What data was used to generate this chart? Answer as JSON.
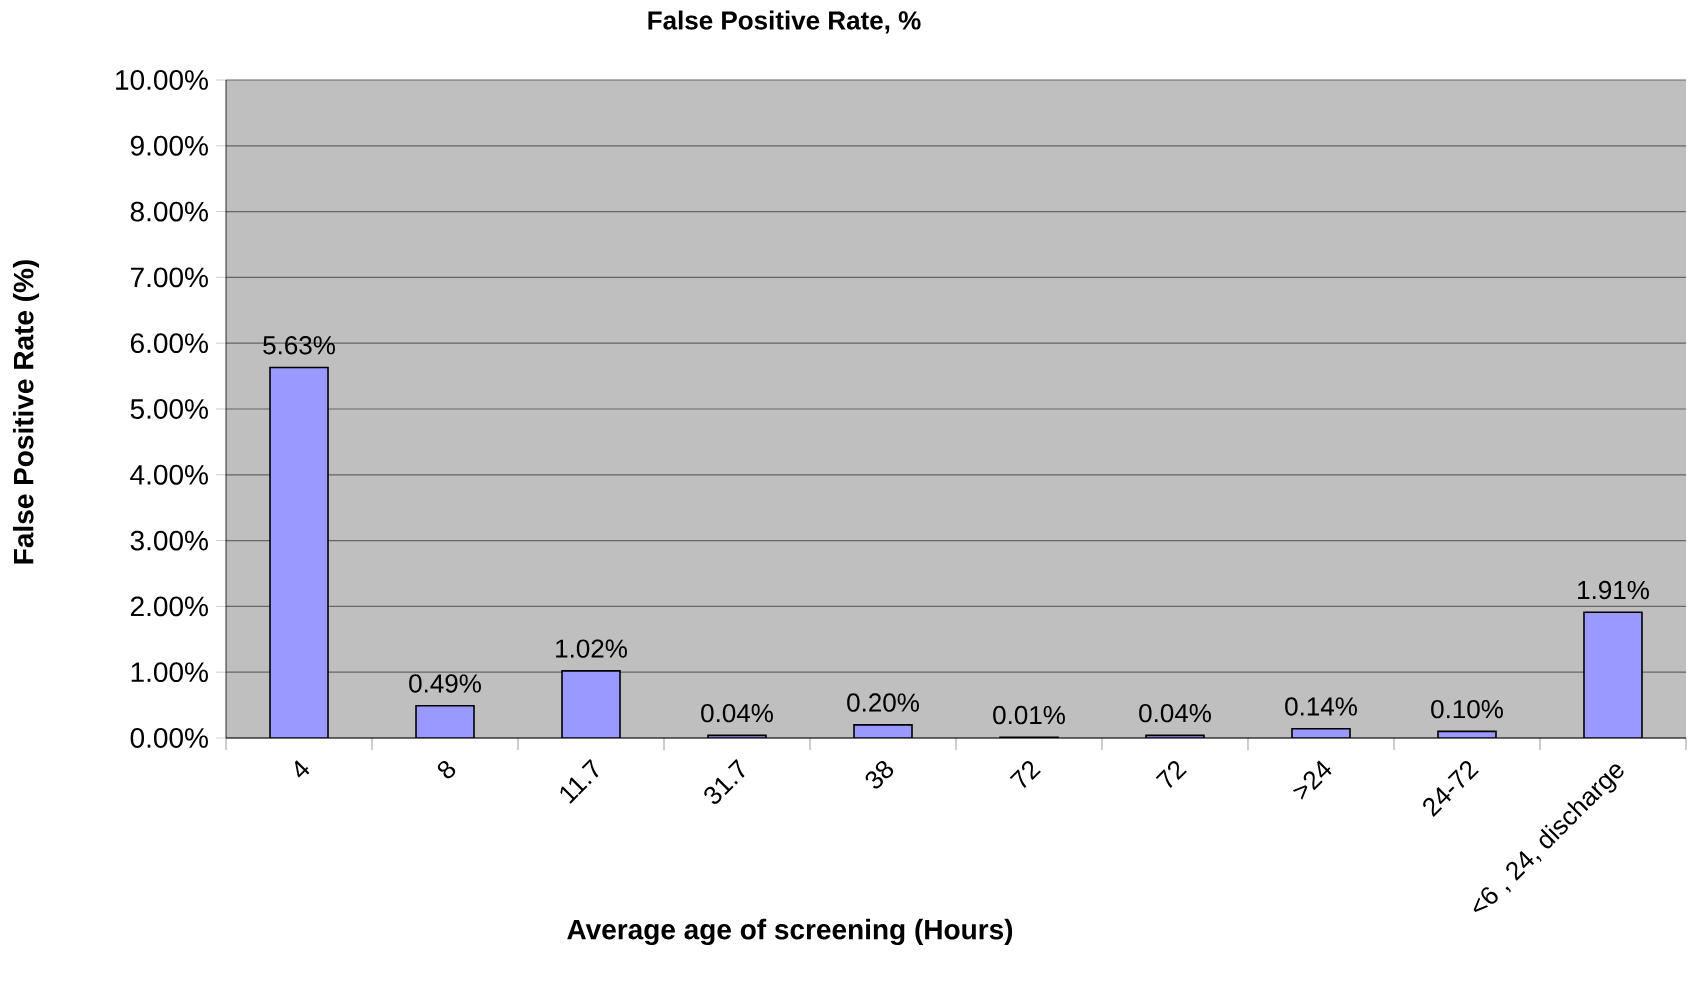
{
  "chart_data": {
    "type": "bar",
    "title": "False Positive Rate, %",
    "xlabel": "Average age of screening (Hours)",
    "ylabel": "False Positive Rate (%)",
    "categories": [
      "4",
      "8",
      "11.7",
      "31.7",
      "38",
      "72",
      "72",
      ">24",
      "24-72",
      "<6 , 24, discharge"
    ],
    "values": [
      5.63,
      0.49,
      1.02,
      0.04,
      0.2,
      0.01,
      0.04,
      0.14,
      0.1,
      1.91
    ],
    "value_labels": [
      "5.63%",
      "0.49%",
      "1.02%",
      "0.04%",
      "0.20%",
      "0.01%",
      "0.04%",
      "0.14%",
      "0.10%",
      "1.91%"
    ],
    "color": "#9999ff",
    "ylim": [
      0,
      10
    ],
    "yticks": [
      {
        "value": 0,
        "label": "0.00%"
      },
      {
        "value": 1,
        "label": "1.00%"
      },
      {
        "value": 2,
        "label": "2.00%"
      },
      {
        "value": 3,
        "label": "3.00%"
      },
      {
        "value": 4,
        "label": "4.00%"
      },
      {
        "value": 5,
        "label": "5.00%"
      },
      {
        "value": 6,
        "label": "6.00%"
      },
      {
        "value": 7,
        "label": "7.00%"
      },
      {
        "value": 8,
        "label": "8.00%"
      },
      {
        "value": 9,
        "label": "9.00%"
      },
      {
        "value": 10,
        "label": "10.00%"
      }
    ],
    "grid": "y"
  }
}
